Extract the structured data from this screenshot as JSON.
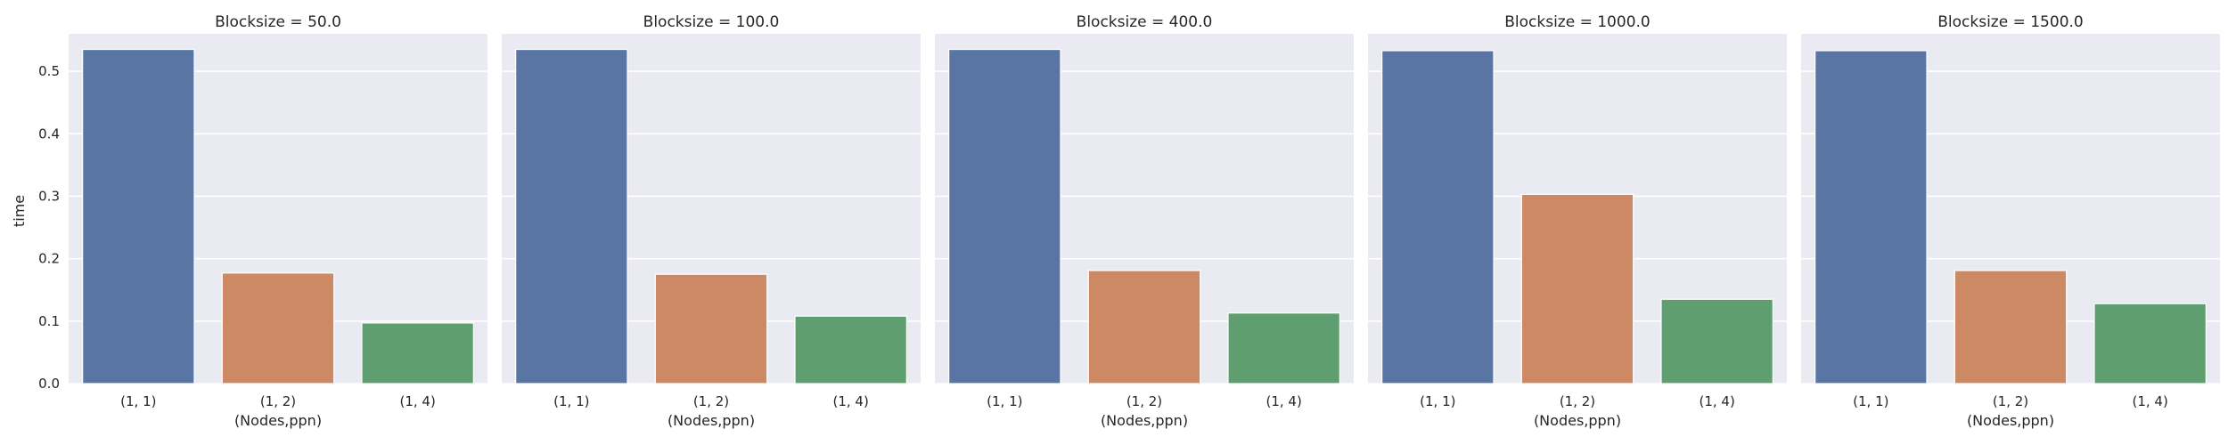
{
  "chart_data": {
    "type": "bar",
    "ylabel": "time",
    "xlabel": "(Nodes,ppn)",
    "ylim": [
      0,
      0.56
    ],
    "yticks": [
      "0.0",
      "0.1",
      "0.2",
      "0.3",
      "0.4",
      "0.5"
    ],
    "categories": [
      "(1, 1)",
      "(1, 2)",
      "(1, 4)"
    ],
    "colors": [
      "#5875a4",
      "#cc8963",
      "#5f9e6e"
    ],
    "background": "#eaeaf2",
    "grid": true,
    "panels": [
      {
        "title": "Blocksize = 50.0",
        "values": [
          0.535,
          0.177,
          0.097
        ]
      },
      {
        "title": "Blocksize = 100.0",
        "values": [
          0.535,
          0.175,
          0.108
        ]
      },
      {
        "title": "Blocksize = 400.0",
        "values": [
          0.535,
          0.181,
          0.113
        ]
      },
      {
        "title": "Blocksize = 1000.0",
        "values": [
          0.533,
          0.303,
          0.135
        ]
      },
      {
        "title": "Blocksize = 1500.0",
        "values": [
          0.533,
          0.181,
          0.128
        ]
      }
    ]
  }
}
